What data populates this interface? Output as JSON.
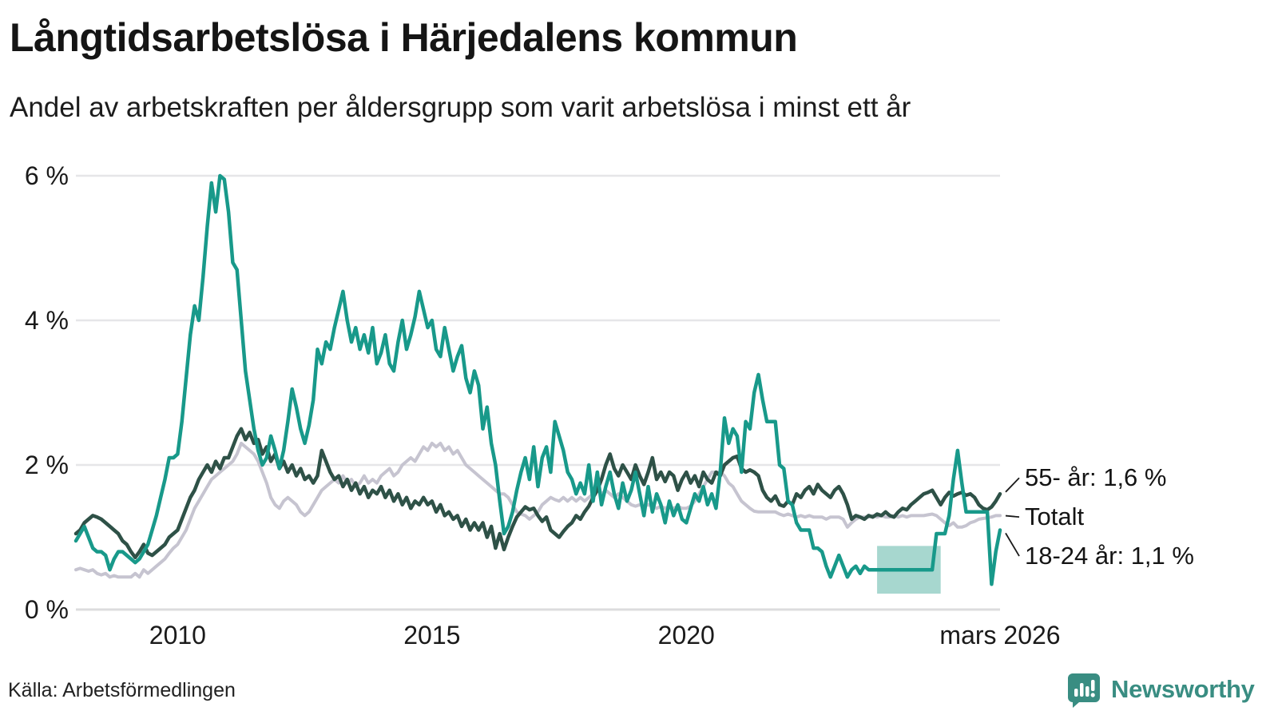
{
  "header": {
    "title": "Långtidsarbetslösa i Härjedalens kommun",
    "subtitle": "Andel av arbetskraften per åldersgrupp som varit arbetslösa i minst ett år"
  },
  "footer": {
    "source": "Källa: Arbetsförmedlingen",
    "brand": "Newsworthy"
  },
  "colors": {
    "teal": "#18998a",
    "dark_green": "#2e5147",
    "light_gray": "#c6c4d0",
    "band": "#a7d7cf",
    "grid": "#e6e6e8",
    "axis": "#dcdcde",
    "text": "#1a1a1a",
    "brand_teal": "#398d82"
  },
  "chart_data": {
    "type": "line",
    "title": "Långtidsarbetslösa i Härjedalens kommun",
    "subtitle": "Andel av arbetskraften per åldersgrupp som varit arbetslösa i minst ett år",
    "unit": "%",
    "x_unit": "monthly, year fraction",
    "x_start": 2008.0,
    "x_step": 0.0833333,
    "x_end": 2026.1667,
    "ylim": [
      0,
      6.2
    ],
    "grid": true,
    "legend_position": "end-of-line labels, right side",
    "y_ticks": [
      {
        "value": 0,
        "label": "0 %"
      },
      {
        "value": 2,
        "label": "2 %"
      },
      {
        "value": 4,
        "label": "4 %"
      },
      {
        "value": 6,
        "label": "6 %"
      }
    ],
    "x_ticks": [
      {
        "value": 2010,
        "label": "2010"
      },
      {
        "value": 2015,
        "label": "2015"
      },
      {
        "value": 2020,
        "label": "2020"
      },
      {
        "value": 2026.1667,
        "label": "mars 2026"
      }
    ],
    "series": [
      {
        "name": "Totalt",
        "color": "#c6c4d0",
        "stroke_width": 4,
        "values": [
          0.55,
          0.57,
          0.55,
          0.53,
          0.55,
          0.5,
          0.48,
          0.5,
          0.45,
          0.47,
          0.45,
          0.45,
          0.45,
          0.45,
          0.5,
          0.45,
          0.55,
          0.5,
          0.55,
          0.6,
          0.65,
          0.7,
          0.78,
          0.85,
          0.9,
          1.0,
          1.1,
          1.25,
          1.4,
          1.5,
          1.6,
          1.7,
          1.8,
          1.85,
          1.9,
          1.95,
          2.0,
          2.05,
          2.15,
          2.3,
          2.25,
          2.2,
          2.15,
          2.05,
          1.9,
          1.75,
          1.55,
          1.45,
          1.4,
          1.5,
          1.55,
          1.5,
          1.45,
          1.35,
          1.3,
          1.35,
          1.45,
          1.55,
          1.65,
          1.7,
          1.75,
          1.8,
          1.75,
          1.85,
          1.75,
          1.8,
          1.7,
          1.75,
          1.85,
          1.75,
          1.8,
          1.75,
          1.85,
          1.9,
          1.95,
          1.85,
          1.9,
          2.0,
          2.05,
          2.1,
          2.05,
          2.15,
          2.25,
          2.2,
          2.3,
          2.25,
          2.3,
          2.2,
          2.25,
          2.15,
          2.2,
          2.1,
          2.0,
          1.95,
          1.9,
          1.85,
          1.8,
          1.75,
          1.7,
          1.65,
          1.6,
          1.6,
          1.55,
          1.45,
          1.35,
          1.32,
          1.3,
          1.25,
          1.3,
          1.35,
          1.45,
          1.5,
          1.55,
          1.52,
          1.5,
          1.55,
          1.5,
          1.55,
          1.5,
          1.55,
          1.5,
          1.55,
          1.6,
          1.65,
          1.6,
          1.65,
          1.6,
          1.55,
          1.6,
          1.55,
          1.5,
          1.45,
          1.43,
          1.45,
          1.43,
          1.45,
          1.43,
          1.4,
          1.43,
          1.4,
          1.43,
          1.4,
          1.43,
          1.4,
          1.4,
          1.43,
          1.5,
          1.6,
          1.7,
          1.8,
          1.9,
          1.9,
          1.9,
          1.85,
          1.75,
          1.7,
          1.6,
          1.5,
          1.45,
          1.4,
          1.36,
          1.35,
          1.35,
          1.35,
          1.35,
          1.35,
          1.32,
          1.3,
          1.32,
          1.3,
          1.28,
          1.3,
          1.28,
          1.3,
          1.28,
          1.28,
          1.28,
          1.25,
          1.28,
          1.28,
          1.28,
          1.25,
          1.14,
          1.2,
          1.25,
          1.28,
          1.28,
          1.28,
          1.3,
          1.28,
          1.3,
          1.28,
          1.28,
          1.3,
          1.28,
          1.3,
          1.28,
          1.3,
          1.3,
          1.3,
          1.3,
          1.31,
          1.32,
          1.3,
          1.25,
          1.2,
          1.16,
          1.2,
          1.14,
          1.14,
          1.16,
          1.2,
          1.22,
          1.25,
          1.26,
          1.27,
          1.28,
          1.3,
          1.3
        ]
      },
      {
        "name": "55- år",
        "color": "#2e5147",
        "stroke_width": 4.5,
        "values": [
          1.05,
          1.1,
          1.2,
          1.25,
          1.3,
          1.28,
          1.25,
          1.2,
          1.15,
          1.1,
          1.05,
          0.95,
          0.9,
          0.8,
          0.72,
          0.8,
          0.9,
          0.78,
          0.75,
          0.8,
          0.85,
          0.9,
          1.0,
          1.05,
          1.1,
          1.25,
          1.4,
          1.55,
          1.65,
          1.8,
          1.9,
          2.0,
          1.9,
          2.05,
          1.95,
          2.1,
          2.1,
          2.25,
          2.4,
          2.5,
          2.35,
          2.45,
          2.3,
          2.35,
          2.15,
          2.25,
          2.05,
          2.15,
          1.95,
          2.05,
          1.9,
          2.0,
          1.85,
          1.95,
          1.8,
          1.85,
          1.75,
          1.85,
          2.2,
          2.05,
          1.9,
          1.8,
          1.85,
          1.7,
          1.8,
          1.65,
          1.75,
          1.6,
          1.7,
          1.55,
          1.65,
          1.6,
          1.7,
          1.55,
          1.65,
          1.5,
          1.6,
          1.45,
          1.55,
          1.4,
          1.5,
          1.45,
          1.55,
          1.45,
          1.5,
          1.35,
          1.45,
          1.3,
          1.35,
          1.25,
          1.3,
          1.15,
          1.25,
          1.1,
          1.2,
          1.1,
          1.2,
          1.0,
          1.15,
          0.85,
          1.05,
          0.83,
          1.0,
          1.15,
          1.28,
          1.35,
          1.42,
          1.38,
          1.4,
          1.3,
          1.22,
          1.28,
          1.1,
          1.05,
          1.0,
          1.08,
          1.15,
          1.2,
          1.3,
          1.25,
          1.35,
          1.43,
          1.55,
          1.65,
          1.8,
          2.0,
          2.15,
          1.95,
          1.85,
          2.0,
          1.9,
          1.8,
          2.0,
          1.85,
          1.73,
          1.9,
          2.1,
          1.8,
          1.9,
          1.77,
          1.9,
          1.85,
          1.65,
          1.8,
          1.9,
          1.75,
          1.85,
          1.7,
          1.9,
          1.8,
          1.75,
          1.9,
          1.85,
          2.0,
          2.05,
          2.1,
          2.12,
          1.95,
          1.9,
          1.93,
          1.9,
          1.85,
          1.65,
          1.55,
          1.5,
          1.57,
          1.45,
          1.43,
          1.5,
          1.45,
          1.6,
          1.55,
          1.65,
          1.7,
          1.6,
          1.73,
          1.65,
          1.6,
          1.55,
          1.65,
          1.7,
          1.6,
          1.45,
          1.25,
          1.3,
          1.28,
          1.25,
          1.3,
          1.28,
          1.32,
          1.3,
          1.35,
          1.3,
          1.28,
          1.35,
          1.4,
          1.38,
          1.45,
          1.5,
          1.55,
          1.6,
          1.62,
          1.65,
          1.55,
          1.45,
          1.55,
          1.62,
          1.57,
          1.6,
          1.62,
          1.58,
          1.6,
          1.55,
          1.45,
          1.4,
          1.38,
          1.42,
          1.5,
          1.6
        ]
      },
      {
        "name": "18-24 år",
        "color": "#18998a",
        "stroke_width": 4.5,
        "values": [
          0.95,
          1.05,
          1.15,
          1.0,
          0.85,
          0.8,
          0.8,
          0.75,
          0.55,
          0.7,
          0.8,
          0.8,
          0.75,
          0.7,
          0.65,
          0.7,
          0.8,
          0.9,
          1.1,
          1.3,
          1.55,
          1.8,
          2.1,
          2.1,
          2.15,
          2.6,
          3.2,
          3.8,
          4.2,
          4.0,
          4.6,
          5.3,
          5.9,
          5.5,
          6.0,
          5.95,
          5.5,
          4.8,
          4.7,
          4.0,
          3.3,
          2.9,
          2.5,
          2.2,
          2.0,
          2.1,
          2.4,
          2.2,
          1.95,
          2.2,
          2.6,
          3.05,
          2.8,
          2.5,
          2.3,
          2.55,
          2.9,
          3.6,
          3.4,
          3.7,
          3.6,
          3.9,
          4.15,
          4.4,
          4.0,
          3.7,
          3.9,
          3.6,
          3.8,
          3.55,
          3.9,
          3.4,
          3.55,
          3.8,
          3.4,
          3.3,
          3.7,
          4.0,
          3.6,
          3.8,
          4.05,
          4.4,
          4.15,
          3.9,
          4.0,
          3.6,
          3.5,
          3.9,
          3.6,
          3.3,
          3.5,
          3.65,
          3.2,
          3.0,
          3.3,
          3.1,
          2.5,
          2.8,
          2.3,
          2.0,
          1.5,
          1.05,
          1.15,
          1.35,
          1.65,
          1.9,
          2.1,
          1.8,
          2.25,
          1.7,
          2.1,
          2.25,
          1.9,
          2.6,
          2.4,
          2.2,
          1.9,
          1.8,
          1.6,
          1.75,
          1.6,
          2.0,
          1.5,
          1.9,
          1.45,
          1.7,
          1.9,
          1.6,
          1.4,
          1.75,
          1.5,
          1.65,
          1.9,
          1.6,
          1.3,
          1.7,
          1.35,
          1.6,
          1.45,
          1.2,
          1.5,
          1.3,
          1.45,
          1.25,
          1.2,
          1.4,
          1.6,
          1.5,
          1.7,
          1.45,
          1.6,
          1.4,
          1.9,
          2.65,
          2.3,
          2.5,
          2.4,
          1.9,
          2.6,
          2.5,
          3.0,
          3.25,
          2.9,
          2.6,
          2.6,
          2.6,
          2.0,
          1.95,
          1.5,
          1.45,
          1.2,
          1.1,
          1.1,
          1.1,
          0.85,
          0.85,
          0.8,
          0.6,
          0.45,
          0.6,
          0.75,
          0.6,
          0.45,
          0.55,
          0.6,
          0.5,
          0.6,
          0.55,
          0.55,
          0.55,
          0.55,
          0.55,
          0.55,
          0.55,
          0.55,
          0.55,
          0.55,
          0.55,
          0.55,
          0.55,
          0.55,
          0.55,
          0.55,
          1.05,
          1.05,
          1.05,
          1.3,
          1.8,
          2.2,
          1.75,
          1.35,
          1.35,
          1.35,
          1.35,
          1.35,
          1.35,
          0.35,
          0.8,
          1.1
        ]
      }
    ],
    "band": {
      "series": "18-24 år",
      "x_from": 2023.75,
      "x_to": 2025.0,
      "upper": 0.88,
      "lower": 0.22,
      "color": "#a7d7cf",
      "note": "uncertainty band around flat 18-24 år segment"
    },
    "annotations": [
      {
        "series": "55- år",
        "text": "55- år: 1,6 %",
        "label_value": 1.82
      },
      {
        "series": "Totalt",
        "text": "Totalt",
        "label_value": 1.28
      },
      {
        "series": "18-24 år",
        "text": "18-24 år: 1,1 %",
        "label_value": 0.74
      }
    ],
    "latest_values": {
      "55- år": 1.6,
      "Totalt": 1.3,
      "18-24 år": 1.1
    }
  }
}
